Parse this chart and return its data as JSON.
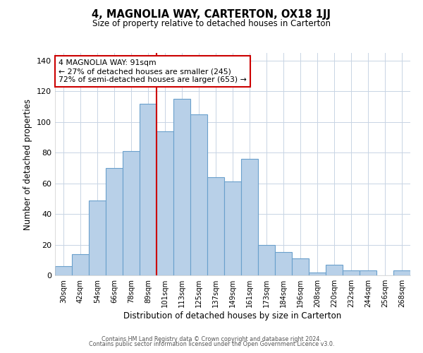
{
  "title": "4, MAGNOLIA WAY, CARTERTON, OX18 1JJ",
  "subtitle": "Size of property relative to detached houses in Carterton",
  "xlabel": "Distribution of detached houses by size in Carterton",
  "ylabel": "Number of detached properties",
  "bar_labels": [
    "30sqm",
    "42sqm",
    "54sqm",
    "66sqm",
    "78sqm",
    "89sqm",
    "101sqm",
    "113sqm",
    "125sqm",
    "137sqm",
    "149sqm",
    "161sqm",
    "173sqm",
    "184sqm",
    "196sqm",
    "208sqm",
    "220sqm",
    "232sqm",
    "244sqm",
    "256sqm",
    "268sqm"
  ],
  "bar_values": [
    6,
    14,
    49,
    70,
    81,
    112,
    94,
    115,
    105,
    64,
    61,
    76,
    20,
    15,
    11,
    2,
    7,
    3,
    3,
    0,
    3
  ],
  "bar_color": "#b8d0e8",
  "bar_edge_color": "#6aa0cc",
  "ylim": [
    0,
    145
  ],
  "yticks": [
    0,
    20,
    40,
    60,
    80,
    100,
    120,
    140
  ],
  "vline_x": 5.5,
  "vline_color": "#cc0000",
  "annotation_text": "4 MAGNOLIA WAY: 91sqm\n← 27% of detached houses are smaller (245)\n72% of semi-detached houses are larger (653) →",
  "annotation_box_color": "#ffffff",
  "annotation_box_edge": "#cc0000",
  "footer1": "Contains HM Land Registry data © Crown copyright and database right 2024.",
  "footer2": "Contains public sector information licensed under the Open Government Licence v3.0.",
  "background_color": "#ffffff",
  "grid_color": "#c8d4e4"
}
